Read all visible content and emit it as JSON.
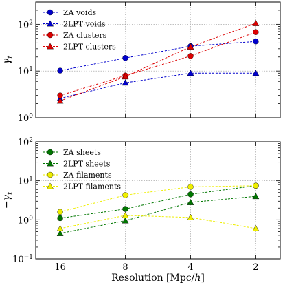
{
  "chart_data": [
    {
      "type": "line",
      "ylabel": "γ_t",
      "xlabel": "",
      "yscale": "log",
      "ylim": [
        1,
        300
      ],
      "x_reversed": true,
      "x_ticks": [
        16,
        8,
        4,
        2
      ],
      "x_tick_labels": [
        "",
        "",
        "",
        ""
      ],
      "y_ticks": [
        1,
        10,
        100
      ],
      "y_tick_labels": [
        "10^0",
        "10^1",
        "10^2"
      ],
      "grid": true,
      "legend_position": "top-left",
      "series": [
        {
          "name": "ZA voids",
          "color": "#0000cc",
          "marker": "circle",
          "x": [
            16,
            8,
            4,
            2
          ],
          "values": [
            10.2,
            19.0,
            34.0,
            43.0
          ]
        },
        {
          "name": "2LPT voids",
          "color": "#0000cc",
          "marker": "triangle",
          "x": [
            16,
            8,
            4,
            2
          ],
          "values": [
            2.6,
            5.6,
            9.0,
            9.0
          ]
        },
        {
          "name": "ZA clusters",
          "color": "#dd0000",
          "marker": "circle",
          "x": [
            16,
            8,
            4,
            2
          ],
          "values": [
            3.0,
            8.0,
            21.0,
            68.0
          ]
        },
        {
          "name": "2LPT clusters",
          "color": "#dd0000",
          "marker": "triangle",
          "x": [
            16,
            8,
            4,
            2
          ],
          "values": [
            2.3,
            7.6,
            33.0,
            105.0
          ]
        }
      ]
    },
    {
      "type": "line",
      "ylabel": "−γ_t",
      "xlabel": "Resolution [Mpc/h]",
      "yscale": "log",
      "ylim": [
        0.1,
        100
      ],
      "x_reversed": true,
      "x_ticks": [
        16,
        8,
        4,
        2
      ],
      "x_tick_labels": [
        "16",
        "8",
        "4",
        "2"
      ],
      "y_ticks": [
        0.1,
        1,
        10,
        100
      ],
      "y_tick_labels": [
        "10^-1",
        "10^0",
        "10^1",
        "10^2"
      ],
      "grid": true,
      "legend_position": "top-left",
      "series": [
        {
          "name": "ZA sheets",
          "color": "#007700",
          "marker": "circle",
          "x": [
            16,
            8,
            4,
            2
          ],
          "values": [
            1.1,
            1.9,
            4.5,
            7.5
          ]
        },
        {
          "name": "2LPT sheets",
          "color": "#007700",
          "marker": "triangle",
          "x": [
            16,
            8,
            4,
            2
          ],
          "values": [
            0.45,
            0.95,
            2.8,
            4.0
          ]
        },
        {
          "name": "ZA filaments",
          "color": "#eeee00",
          "marker": "circle",
          "x": [
            16,
            8,
            4,
            2
          ],
          "values": [
            1.6,
            4.3,
            7.0,
            7.5
          ]
        },
        {
          "name": "2LPT filaments",
          "color": "#eeee00",
          "marker": "triangle",
          "x": [
            16,
            8,
            4,
            2
          ],
          "values": [
            0.6,
            1.3,
            1.15,
            0.6
          ]
        }
      ]
    }
  ]
}
